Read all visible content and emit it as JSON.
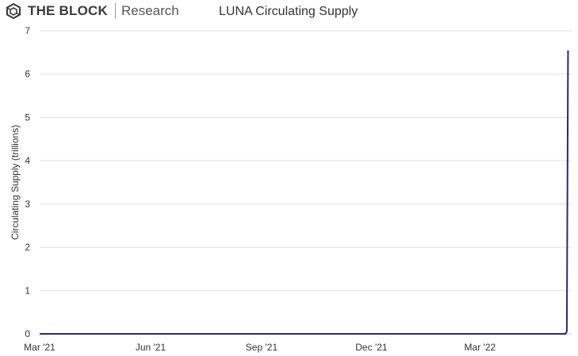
{
  "brand": {
    "name": "THE BLOCK",
    "sub": "Research",
    "icon": "the-block-cube-icon"
  },
  "chart_data": {
    "type": "line",
    "title": "LUNA Circulating Supply",
    "ylabel": "Circulating Supply (trillions)",
    "xlabel": "",
    "ylim": [
      0,
      7
    ],
    "yticks": [
      0,
      1,
      2,
      3,
      4,
      5,
      6,
      7
    ],
    "xlim": [
      "2021-03-01",
      "2022-05-16"
    ],
    "xticks": [
      {
        "date": "2021-03-01",
        "label": "Mar '21"
      },
      {
        "date": "2021-06-01",
        "label": "Jun '21"
      },
      {
        "date": "2021-09-01",
        "label": "Sep '21"
      },
      {
        "date": "2021-12-01",
        "label": "Dec '21"
      },
      {
        "date": "2022-03-01",
        "label": "Mar '22"
      }
    ],
    "grid": true,
    "line_color": "#2b2a6e",
    "series": [
      {
        "x": [
          "2021-03-01",
          "2021-06-01",
          "2021-09-01",
          "2021-12-01",
          "2022-03-01",
          "2022-05-08",
          "2022-05-10",
          "2022-05-11",
          "2022-05-12",
          "2022-05-13"
        ],
        "values": [
          0.0004,
          0.0004,
          0.0004,
          0.0004,
          0.0004,
          0.0004,
          0.0004,
          0.001,
          0.06,
          6.55
        ]
      }
    ]
  }
}
